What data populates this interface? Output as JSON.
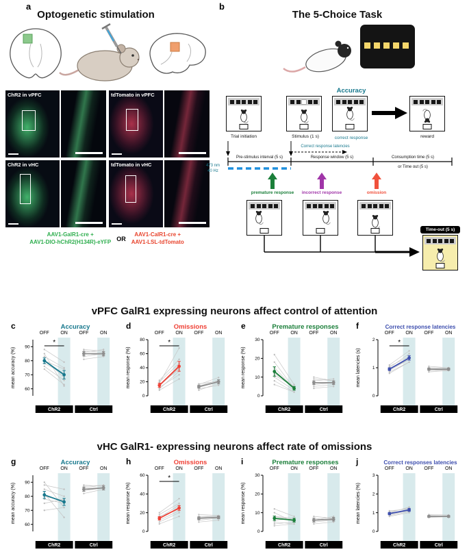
{
  "panel_a": {
    "label": "a",
    "title": "Optogenetic stimulation",
    "micrographs": [
      {
        "label": "ChR2 in vPFC",
        "fluorophore_color": "#4ec474"
      },
      {
        "label": "tdTomato in vPFC",
        "fluorophore_color": "#de3e5c"
      },
      {
        "label": "ChR2 in vHC",
        "fluorophore_color": "#4ec474"
      },
      {
        "label": "tdTomato in vHC",
        "fluorophore_color": "#de3e5c"
      }
    ],
    "construct_green": [
      "AAV1-GalR1-cre +",
      "AAV1-DIO-hChR2(H134R)-eYFP"
    ],
    "or_label": "OR",
    "construct_red": [
      "AAV1-CalR1-cre +",
      "AAV1-LSL-tdTomato"
    ]
  },
  "panel_b": {
    "label": "b",
    "title": "The 5-Choice Task",
    "accuracy_label": "Accuracy",
    "stages": [
      "Trial initiation",
      "Stimulus (1 s)",
      "correct response",
      "reward"
    ],
    "latency_label": "Correct response latencies",
    "segments": [
      "Pre-stimulus interval (5 s)",
      "Response window (5 s)",
      "Consumption time (5 s)",
      "or Time out (5 s)"
    ],
    "laser": [
      "473 nm",
      "40 Hz"
    ],
    "errors": [
      "premature response",
      "incorrect response",
      "omission"
    ],
    "timeout_label": "Time-out (5 s)"
  },
  "section1_title": "vPFC GalR1 expressing neurons affect control of attention",
  "section2_title": "vHC GalR1- expressing neurons affect rate of omissions",
  "colors": {
    "teal": "#17788d",
    "omissions_red": "#ef4136",
    "premature_green": "#1b7f3a",
    "incorrect_purple": "#a035a8",
    "latency_blue": "#3d4eae",
    "laser_blue": "#1e8fdd",
    "laser_on_band": "#d8eaec",
    "construct_green": "#2eae4e",
    "construct_red": "#e8432c"
  },
  "chart_data": [
    {
      "type": "line",
      "panel": "c",
      "title": "Accuracy",
      "title_color": "#17788d",
      "ylabel": "mean accuracy (%)",
      "ylim": [
        55,
        95
      ],
      "yticks": [
        60,
        70,
        80,
        90
      ],
      "conditions": [
        "OFF",
        "ON"
      ],
      "shaded_condition": "ON",
      "band_color": "#d8eaec",
      "significance": "*",
      "groups": [
        {
          "name": "ChR2",
          "color": "#17788d",
          "mean": [
            80,
            70
          ],
          "sem": [
            2,
            3
          ],
          "individuals": [
            [
              83,
              75
            ],
            [
              85,
              62
            ],
            [
              78,
              71
            ],
            [
              88,
              79
            ],
            [
              74,
              63
            ],
            [
              80,
              74
            ],
            [
              81,
              68
            ],
            [
              76,
              66
            ]
          ]
        },
        {
          "name": "Ctrl",
          "color": "#8e8e8e",
          "mean": [
            85,
            85
          ],
          "sem": [
            1.5,
            1.5
          ],
          "individuals": [
            [
              86,
              88
            ],
            [
              83,
              85
            ],
            [
              85,
              84
            ],
            [
              88,
              87
            ],
            [
              81,
              83
            ],
            [
              87,
              86
            ]
          ]
        }
      ]
    },
    {
      "type": "line",
      "panel": "d",
      "title": "Omissions",
      "title_color": "#ef4136",
      "ylabel": "mean response (%)",
      "ylim": [
        0,
        80
      ],
      "yticks": [
        0,
        20,
        40,
        60,
        80
      ],
      "conditions": [
        "OFF",
        "ON"
      ],
      "shaded_condition": "ON",
      "band_color": "#d8eaec",
      "significance": "*",
      "groups": [
        {
          "name": "ChR2",
          "color": "#ef4136",
          "mean": [
            15,
            42
          ],
          "sem": [
            3,
            7
          ],
          "individuals": [
            [
              10,
              35
            ],
            [
              18,
              68
            ],
            [
              12,
              30
            ],
            [
              20,
              46
            ],
            [
              8,
              24
            ],
            [
              15,
              38
            ],
            [
              22,
              52
            ],
            [
              14,
              40
            ]
          ]
        },
        {
          "name": "Ctrl",
          "color": "#8e8e8e",
          "mean": [
            13,
            20
          ],
          "sem": [
            2,
            3
          ],
          "individuals": [
            [
              10,
              15
            ],
            [
              14,
              22
            ],
            [
              8,
              18
            ],
            [
              16,
              26
            ],
            [
              12,
              20
            ],
            [
              17,
              21
            ]
          ]
        }
      ]
    },
    {
      "type": "line",
      "panel": "e",
      "title": "Premature responses",
      "title_color": "#1b7f3a",
      "ylabel": "mean response (%)",
      "ylim": [
        0,
        30
      ],
      "yticks": [
        0,
        10,
        20,
        30
      ],
      "conditions": [
        "OFF",
        "ON"
      ],
      "shaded_condition": "ON",
      "band_color": "#d8eaec",
      "significance": "",
      "groups": [
        {
          "name": "ChR2",
          "color": "#1b7f3a",
          "mean": [
            13,
            4
          ],
          "sem": [
            2.5,
            1
          ],
          "individuals": [
            [
              22,
              6
            ],
            [
              15,
              4
            ],
            [
              10,
              3
            ],
            [
              8,
              2
            ],
            [
              12,
              5
            ],
            [
              18,
              4
            ],
            [
              6,
              2
            ],
            [
              11,
              5
            ]
          ]
        },
        {
          "name": "Ctrl",
          "color": "#8e8e8e",
          "mean": [
            7,
            7
          ],
          "sem": [
            1,
            1
          ],
          "individuals": [
            [
              8,
              9
            ],
            [
              5,
              6
            ],
            [
              10,
              8
            ],
            [
              6,
              7
            ],
            [
              4,
              5
            ],
            [
              9,
              8
            ]
          ]
        }
      ]
    },
    {
      "type": "line",
      "panel": "f",
      "title": "Correct response latencies",
      "title_color": "#3d4eae",
      "ylabel": "mean latencies (s)",
      "ylim": [
        0,
        2
      ],
      "yticks": [
        0,
        1,
        2
      ],
      "conditions": [
        "OFF",
        "ON"
      ],
      "shaded_condition": "ON",
      "band_color": "#d8eaec",
      "significance": "*",
      "groups": [
        {
          "name": "ChR2",
          "color": "#3d4eae",
          "mean": [
            0.95,
            1.35
          ],
          "sem": [
            0.05,
            0.08
          ],
          "individuals": [
            [
              0.9,
              1.3
            ],
            [
              1.0,
              1.5
            ],
            [
              0.8,
              1.2
            ],
            [
              1.1,
              1.6
            ],
            [
              0.95,
              1.3
            ],
            [
              1.05,
              1.4
            ],
            [
              0.85,
              1.2
            ],
            [
              0.95,
              1.3
            ]
          ]
        },
        {
          "name": "Ctrl",
          "color": "#8e8e8e",
          "mean": [
            0.95,
            0.95
          ],
          "sem": [
            0.04,
            0.04
          ],
          "individuals": [
            [
              0.9,
              0.95
            ],
            [
              1.0,
              1.0
            ],
            [
              0.85,
              0.9
            ],
            [
              0.95,
              0.9
            ],
            [
              1.05,
              1.0
            ],
            [
              0.9,
              0.92
            ]
          ]
        }
      ]
    },
    {
      "type": "line",
      "panel": "g",
      "title": "Accuracy",
      "title_color": "#17788d",
      "ylabel": "mean accuracy (%)",
      "ylim": [
        55,
        95
      ],
      "yticks": [
        60,
        70,
        80,
        90
      ],
      "conditions": [
        "OFF",
        "ON"
      ],
      "shaded_condition": "ON",
      "band_color": "#d8eaec",
      "significance": "",
      "groups": [
        {
          "name": "ChR2",
          "color": "#17788d",
          "mean": [
            81,
            76
          ],
          "sem": [
            2.5,
            2.5
          ],
          "individuals": [
            [
              85,
              80
            ],
            [
              90,
              72
            ],
            [
              78,
              75
            ],
            [
              82,
              65
            ],
            [
              75,
              78
            ],
            [
              88,
              85
            ],
            [
              70,
              72
            ],
            [
              80,
              77
            ]
          ]
        },
        {
          "name": "Ctrl",
          "color": "#8e8e8e",
          "mean": [
            85,
            86
          ],
          "sem": [
            1.5,
            1.5
          ],
          "individuals": [
            [
              86,
              88
            ],
            [
              84,
              86
            ],
            [
              88,
              87
            ],
            [
              82,
              85
            ],
            [
              85,
              86
            ],
            [
              87,
              88
            ]
          ]
        }
      ]
    },
    {
      "type": "line",
      "panel": "h",
      "title": "Omissions",
      "title_color": "#ef4136",
      "ylabel": "mean response (%)",
      "ylim": [
        0,
        60
      ],
      "yticks": [
        0,
        20,
        40,
        60
      ],
      "conditions": [
        "OFF",
        "ON"
      ],
      "shaded_condition": "ON",
      "band_color": "#d8eaec",
      "significance": "*",
      "groups": [
        {
          "name": "ChR2",
          "color": "#ef4136",
          "mean": [
            14,
            25
          ],
          "sem": [
            1.8,
            2.5
          ],
          "individuals": [
            [
              12,
              22
            ],
            [
              18,
              30
            ],
            [
              10,
              20
            ],
            [
              15,
              28
            ],
            [
              20,
              35
            ],
            [
              8,
              16
            ],
            [
              14,
              25
            ],
            [
              16,
              24
            ]
          ]
        },
        {
          "name": "Ctrl",
          "color": "#8e8e8e",
          "mean": [
            14,
            15
          ],
          "sem": [
            1.5,
            1.5
          ],
          "individuals": [
            [
              12,
              14
            ],
            [
              15,
              16
            ],
            [
              10,
              12
            ],
            [
              18,
              17
            ],
            [
              14,
              15
            ],
            [
              16,
              16
            ]
          ]
        }
      ]
    },
    {
      "type": "line",
      "panel": "i",
      "title": "Premature responses",
      "title_color": "#1b7f3a",
      "ylabel": "mean response (%)",
      "ylim": [
        0,
        30
      ],
      "yticks": [
        0,
        10,
        20,
        30
      ],
      "conditions": [
        "OFF",
        "ON"
      ],
      "shaded_condition": "ON",
      "band_color": "#d8eaec",
      "significance": "",
      "groups": [
        {
          "name": "ChR2",
          "color": "#1b7f3a",
          "mean": [
            7,
            6
          ],
          "sem": [
            1.2,
            1
          ],
          "individuals": [
            [
              8,
              6
            ],
            [
              5,
              4
            ],
            [
              12,
              8
            ],
            [
              4,
              5
            ],
            [
              6,
              7
            ],
            [
              10,
              5
            ],
            [
              3,
              4
            ],
            [
              8,
              7
            ]
          ]
        },
        {
          "name": "Ctrl",
          "color": "#8e8e8e",
          "mean": [
            6,
            6.5
          ],
          "sem": [
            1,
            1
          ],
          "individuals": [
            [
              5,
              6
            ],
            [
              8,
              7
            ],
            [
              4,
              5
            ],
            [
              6,
              8
            ],
            [
              7,
              6
            ],
            [
              6,
              7
            ]
          ]
        }
      ]
    },
    {
      "type": "line",
      "panel": "j",
      "title": "Correct responses latencies",
      "title_color": "#3d4eae",
      "ylabel": "mean latencies (%)",
      "ylim": [
        0,
        3
      ],
      "yticks": [
        0,
        1,
        2,
        3
      ],
      "conditions": [
        "OFF",
        "ON"
      ],
      "shaded_condition": "ON",
      "band_color": "#d8eaec",
      "significance": "",
      "groups": [
        {
          "name": "ChR2",
          "color": "#3d4eae",
          "mean": [
            0.95,
            1.15
          ],
          "sem": [
            0.06,
            0.08
          ],
          "individuals": [
            [
              0.9,
              1.1
            ],
            [
              1.0,
              1.3
            ],
            [
              0.8,
              1.0
            ],
            [
              1.1,
              1.2
            ],
            [
              0.95,
              1.15
            ],
            [
              1.05,
              1.25
            ],
            [
              0.85,
              1.05
            ],
            [
              1.0,
              1.1
            ]
          ]
        },
        {
          "name": "Ctrl",
          "color": "#8e8e8e",
          "mean": [
            0.8,
            0.8
          ],
          "sem": [
            0.05,
            0.05
          ],
          "individuals": [
            [
              0.8,
              0.82
            ],
            [
              0.9,
              0.88
            ],
            [
              0.75,
              0.78
            ],
            [
              0.85,
              0.84
            ],
            [
              0.78,
              0.8
            ],
            [
              0.82,
              0.8
            ]
          ]
        }
      ]
    }
  ]
}
